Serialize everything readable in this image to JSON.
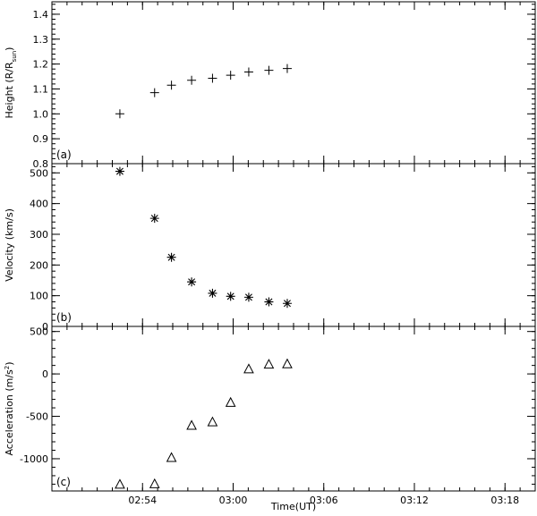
{
  "chart_data": [
    {
      "type": "scatter",
      "panel_label": "(a)",
      "ylabel": "Height (R/R",
      "ylabel_sub": "sun",
      "ylabel_close": ")",
      "marker": "plus",
      "ylim": [
        0.8,
        1.45
      ],
      "yticks": [
        0.8,
        0.9,
        1.0,
        1.1,
        1.2,
        1.3,
        1.4
      ],
      "ytick_labels": [
        "0.8",
        "0.9",
        "1.0",
        "1.1",
        "1.2",
        "1.3",
        "1.4"
      ],
      "x": [
        "02:52:30",
        "02:54:48",
        "02:55:55",
        "02:57:15",
        "02:58:38",
        "02:59:50",
        "03:01:02",
        "03:02:22",
        "03:03:35"
      ],
      "y": [
        1.0,
        1.085,
        1.115,
        1.135,
        1.143,
        1.155,
        1.168,
        1.175,
        1.182
      ]
    },
    {
      "type": "scatter",
      "panel_label": "(b)",
      "ylabel": "Velocity (km/s)",
      "marker": "asterisk",
      "ylim": [
        0,
        530
      ],
      "yticks": [
        0,
        100,
        200,
        300,
        400,
        500
      ],
      "ytick_labels": [
        "0",
        "100",
        "200",
        "300",
        "400",
        "500"
      ],
      "x": [
        "02:52:30",
        "02:54:48",
        "02:55:55",
        "02:57:15",
        "02:58:38",
        "02:59:50",
        "03:01:02",
        "03:02:22",
        "03:03:35"
      ],
      "y": [
        505,
        352,
        225,
        145,
        108,
        98,
        95,
        80,
        75
      ]
    },
    {
      "type": "scatter",
      "panel_label": "(c)",
      "ylabel": "Acceleration (m/s",
      "ylabel_sup": "2",
      "ylabel_close": ")",
      "marker": "triangle",
      "ylim": [
        -1380,
        560
      ],
      "yticks": [
        -1000,
        -500,
        0,
        500
      ],
      "ytick_labels": [
        "-1000",
        "-500",
        "0",
        "500"
      ],
      "x": [
        "02:52:30",
        "02:54:48",
        "02:55:55",
        "02:57:15",
        "02:58:38",
        "02:59:50",
        "03:01:02",
        "03:02:22",
        "03:03:35"
      ],
      "y": [
        -1305,
        -1300,
        -990,
        -610,
        -570,
        -340,
        55,
        110,
        115
      ]
    }
  ],
  "x_axis": {
    "label": "Time(UT)",
    "range": [
      "02:48:00",
      "03:20:00"
    ],
    "tick_labels": [
      "02:54",
      "03:00",
      "03:06",
      "03:12",
      "03:18"
    ],
    "ticks": [
      "02:54:00",
      "03:00:00",
      "03:06:00",
      "03:12:00",
      "03:18:00"
    ]
  }
}
